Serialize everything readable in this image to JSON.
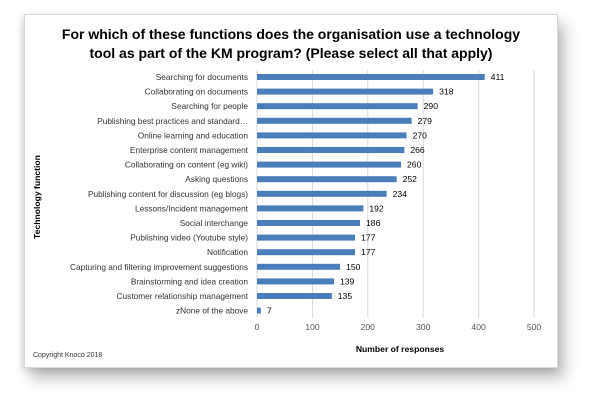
{
  "chart_data": {
    "type": "bar",
    "orientation": "horizontal",
    "title_lines": [
      "For which of these functions does the organisation use a technology",
      "tool as part of the KM program? (Please select all that apply)"
    ],
    "xlabel": "Number of responses",
    "ylabel": "Technology function",
    "xlim": [
      0,
      500
    ],
    "xticks": [
      "0",
      "100",
      "200",
      "300",
      "400",
      "500"
    ],
    "grid": true,
    "bar_color": "#4a7ebb",
    "categories": [
      "Searching for documents",
      "Collaborating on documents",
      "Searching for people",
      "Publishing best practices and standard…",
      "Online learning and education",
      "Enterprise content management",
      "Collaborating on content (eg wiki)",
      "Asking questions",
      "Publishing content for discussion (eg blogs)",
      "Lessons/Incident  management",
      "Social interchange",
      "Publishing video (Youtube style)",
      "Notification",
      "Capturing and filtering improvement suggestions",
      "Brainstorming and idea creation",
      "Customer relationship management",
      "zNone of the above"
    ],
    "values": [
      411,
      318,
      290,
      279,
      270,
      266,
      260,
      252,
      234,
      192,
      186,
      177,
      177,
      150,
      139,
      135,
      7
    ]
  },
  "copyright": "Copyright Knoco 2018"
}
